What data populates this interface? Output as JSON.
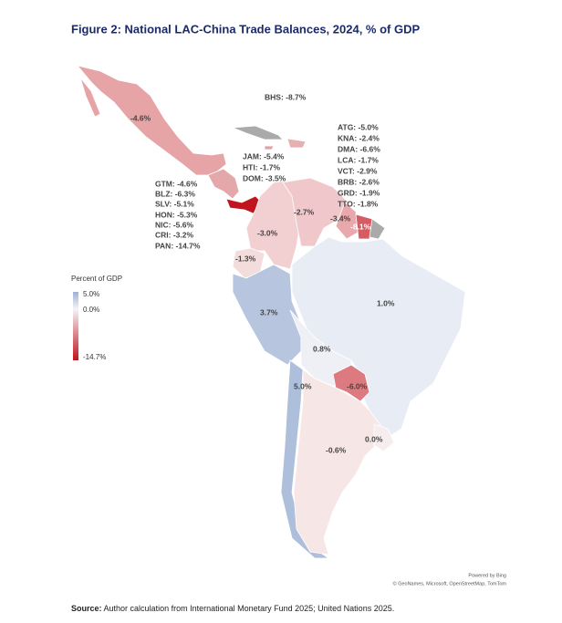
{
  "title": "Figure 2: National LAC-China Trade Balances, 2024, % of GDP",
  "bahamas_label": "BHS: -8.7%",
  "greater_antilles_labels": [
    "JAM: -5.4%",
    "HTI: -1.7%",
    "DOM: -3.5%"
  ],
  "lesser_antilles_labels": [
    "ATG: -5.0%",
    "KNA: -2.4%",
    "DMA: -6.6%",
    "LCA: -1.7%",
    "VCT: -2.9%",
    "BRB: -2.6%",
    "GRD: -1.9%",
    "TTO: -1.8%"
  ],
  "central_america_labels": [
    "GTM: -4.6%",
    "BLZ: -6.3%",
    "SLV: -5.1%",
    "HON: -5.3%",
    "NIC: -5.6%",
    "CRI: -3.2%",
    "PAN: -14.7%"
  ],
  "country_labels": [
    "-4.6%",
    "-2.7%",
    "-3.4%",
    "-8.1%",
    "-3.0%",
    "-1.3%",
    "3.7%",
    "1.0%",
    "0.8%",
    "-6.0%",
    "5.0%",
    "0.0%",
    "-0.6%"
  ],
  "legend": {
    "title": "Percent of GDP",
    "ticks": [
      "5.0%",
      "0.0%",
      "-14.7%"
    ]
  },
  "attribution": [
    "Powered by Bing",
    "© GeoNames, Microsoft, OpenStreetMap, TomTom"
  ],
  "source": {
    "label": "Source:",
    "text": "Author calculation from International Monetary Fund 2025; United Nations 2025."
  }
}
